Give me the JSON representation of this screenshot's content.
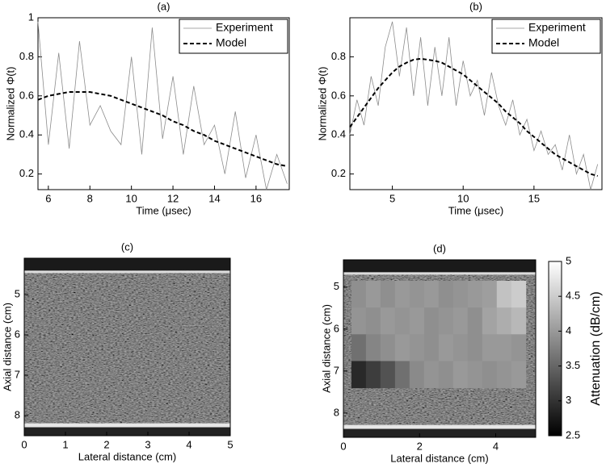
{
  "chart_data": [
    {
      "type": "line",
      "title": "(a)",
      "xlabel": "Time (μsec)",
      "ylabel": "Normalized Φ(t)",
      "x": [
        5.5,
        6,
        6.5,
        7,
        7.5,
        8,
        8.5,
        9,
        9.5,
        10,
        10.5,
        11,
        11.5,
        12,
        12.5,
        13,
        13.5,
        14,
        14.5,
        15,
        15.5,
        16,
        16.5,
        17,
        17.5
      ],
      "series": [
        {
          "name": "Experiment",
          "color": "#8c8c8c",
          "style": "solid",
          "values": [
            0.98,
            0.35,
            0.82,
            0.33,
            0.88,
            0.45,
            0.55,
            0.42,
            0.35,
            0.8,
            0.3,
            0.95,
            0.38,
            0.7,
            0.3,
            0.65,
            0.35,
            0.45,
            0.2,
            0.52,
            0.18,
            0.4,
            0.12,
            0.3,
            0.15
          ]
        },
        {
          "name": "Model",
          "color": "#000000",
          "style": "dashed",
          "values": [
            0.58,
            0.6,
            0.61,
            0.62,
            0.62,
            0.62,
            0.61,
            0.6,
            0.58,
            0.56,
            0.54,
            0.52,
            0.5,
            0.47,
            0.45,
            0.42,
            0.4,
            0.37,
            0.35,
            0.33,
            0.31,
            0.29,
            0.27,
            0.25,
            0.24
          ]
        }
      ],
      "xlim": [
        5.5,
        17.6
      ],
      "ylim": [
        0.12,
        1.0
      ],
      "xticks": [
        6,
        8,
        10,
        12,
        14,
        16
      ],
      "yticks": [
        0.2,
        0.4,
        0.6,
        0.8,
        1
      ],
      "legend": "upper right"
    },
    {
      "type": "line",
      "title": "(b)",
      "xlabel": "Time (μsec)",
      "ylabel": "Normalized Φ(t)",
      "x": [
        2,
        2.5,
        3,
        3.5,
        4,
        4.5,
        5,
        5.5,
        6,
        6.5,
        7,
        7.5,
        8,
        8.5,
        9,
        9.5,
        10,
        10.5,
        11,
        11.5,
        12,
        12.5,
        13,
        13.5,
        14,
        14.5,
        15,
        15.5,
        16,
        16.5,
        17,
        17.5,
        18,
        18.5,
        19,
        19.5
      ],
      "series": [
        {
          "name": "Experiment",
          "color": "#8c8c8c",
          "style": "solid",
          "values": [
            0.4,
            0.58,
            0.45,
            0.7,
            0.55,
            0.85,
            0.98,
            0.7,
            0.95,
            0.6,
            0.9,
            0.55,
            0.85,
            0.6,
            0.9,
            0.55,
            0.78,
            0.6,
            0.68,
            0.5,
            0.72,
            0.55,
            0.45,
            0.58,
            0.4,
            0.48,
            0.32,
            0.42,
            0.3,
            0.35,
            0.22,
            0.4,
            0.2,
            0.3,
            0.12,
            0.25
          ]
        },
        {
          "name": "Model",
          "color": "#000000",
          "style": "dashed",
          "values": [
            0.44,
            0.49,
            0.54,
            0.59,
            0.64,
            0.68,
            0.72,
            0.75,
            0.77,
            0.785,
            0.79,
            0.785,
            0.78,
            0.77,
            0.75,
            0.73,
            0.71,
            0.68,
            0.65,
            0.62,
            0.59,
            0.56,
            0.52,
            0.49,
            0.46,
            0.42,
            0.39,
            0.36,
            0.33,
            0.3,
            0.28,
            0.26,
            0.24,
            0.22,
            0.2,
            0.19
          ]
        }
      ],
      "xlim": [
        2,
        19.8
      ],
      "ylim": [
        0.12,
        1.0
      ],
      "xticks": [
        5,
        10,
        15
      ],
      "yticks": [
        0.2,
        0.4,
        0.6,
        0.8
      ],
      "legend": "upper right"
    },
    {
      "type": "image",
      "title": "(c)",
      "xlabel": "Lateral distance (cm)",
      "ylabel": "Axial distance (cm)",
      "xlim": [
        0,
        5
      ],
      "ylim": [
        4.1,
        8.5
      ],
      "y_reversed": true,
      "xticks": [
        0,
        1,
        2,
        3,
        4,
        5
      ],
      "yticks": [
        5,
        6,
        7,
        8
      ]
    },
    {
      "type": "image",
      "title": "(d)",
      "xlabel": "Lateral distance (cm)",
      "ylabel": "Axial distance (cm)",
      "xlim": [
        0,
        5.05
      ],
      "ylim": [
        4.35,
        8.58
      ],
      "y_reversed": true,
      "xticks": [
        0,
        2,
        4
      ],
      "yticks": [
        5,
        6,
        7,
        8
      ],
      "overlay_xlim": [
        0.21,
        4.79
      ],
      "overlay_ylim": [
        4.85,
        7.4
      ],
      "overlay": [
        [
          3.9,
          4.0,
          3.9,
          4.0,
          3.95,
          4.0,
          3.9,
          3.95,
          4.0,
          4.05,
          4.4,
          4.5
        ],
        [
          3.95,
          3.9,
          4.0,
          3.95,
          4.0,
          3.9,
          3.95,
          4.0,
          3.9,
          4.1,
          4.2,
          4.3
        ],
        [
          3.6,
          3.8,
          3.9,
          4.0,
          3.95,
          3.9,
          4.0,
          3.95,
          3.9,
          4.0,
          4.0,
          3.95
        ],
        [
          2.9,
          3.1,
          3.3,
          3.6,
          3.85,
          3.95,
          3.9,
          4.0,
          3.95,
          3.9,
          3.95,
          4.0
        ]
      ],
      "colorbar_label": "Attenuation (dB/cm)",
      "clim": [
        2.5,
        5
      ],
      "cticks": [
        2.5,
        3,
        3.5,
        4,
        4.5,
        5
      ]
    }
  ]
}
